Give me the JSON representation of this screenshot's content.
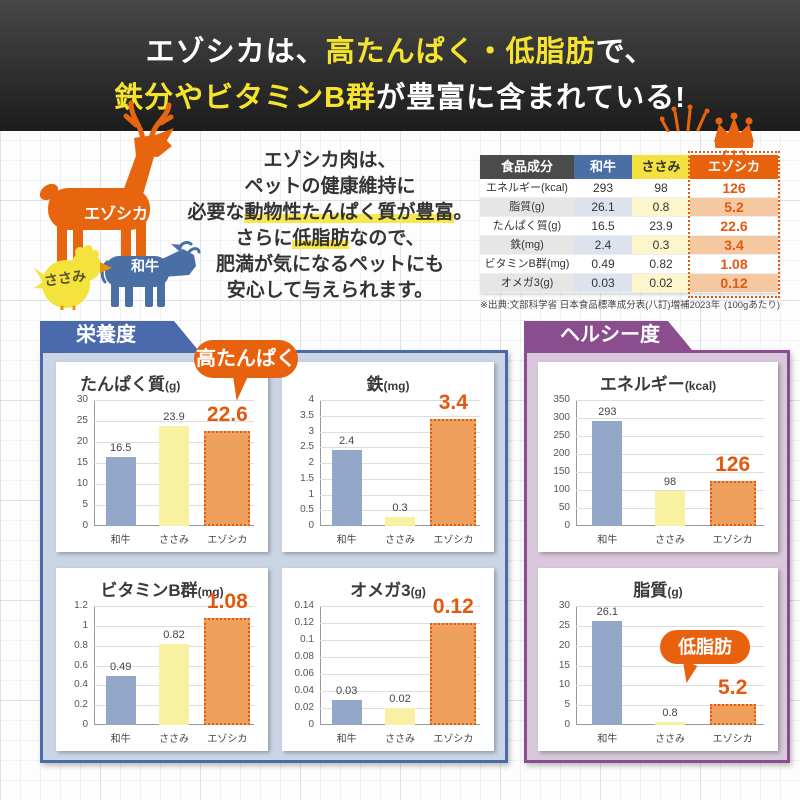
{
  "header": {
    "l1_white1": "エゾシカは、",
    "l1_yellow": "高たんぱく・低脂肪",
    "l1_white2": "で、",
    "l2_yellow": "鉄分やビタミンB群",
    "l2_white": "が豊富に含まれている!"
  },
  "animals": {
    "deer": "エゾシカ",
    "cow": "和牛",
    "chick": "ささみ"
  },
  "intro": {
    "line1": "エゾシカ肉は、",
    "line2": "ペットの健康維持に",
    "line3_pre": "必要な",
    "line3_hl": "動物性たんぱく質が豊富",
    "line3_post": "。",
    "line4_pre": "さらに",
    "line4_hl": "低脂肪",
    "line4_post": "なので、",
    "line5": "肥満が気になるペットにも",
    "line6": "安心して与えられます。"
  },
  "table": {
    "headers": [
      "食品成分",
      "和牛",
      "ささみ",
      "エゾシカ"
    ],
    "rows": [
      {
        "label": "エネルギー(kcal)",
        "wagyu": "293",
        "sasami": "98",
        "ezo": "126"
      },
      {
        "label": "脂質(g)",
        "wagyu": "26.1",
        "sasami": "0.8",
        "ezo": "5.2"
      },
      {
        "label": "たんぱく質(g)",
        "wagyu": "16.5",
        "sasami": "23.9",
        "ezo": "22.6"
      },
      {
        "label": "鉄(mg)",
        "wagyu": "2.4",
        "sasami": "0.3",
        "ezo": "3.4"
      },
      {
        "label": "ビタミンB群(mg)",
        "wagyu": "0.49",
        "sasami": "0.82",
        "ezo": "1.08"
      },
      {
        "label": "オメガ3(g)",
        "wagyu": "0.03",
        "sasami": "0.02",
        "ezo": "0.12"
      }
    ],
    "source": "※出典:文部科学省 日本食品標準成分表(八訂)増補2023年",
    "per": "(100gあたり)"
  },
  "sections": {
    "nutrition_tab": "栄養度",
    "healthy_tab": "ヘルシー度"
  },
  "bubbles": {
    "high_protein": "高たんぱく",
    "low_fat": "低脂肪"
  },
  "colors": {
    "accent_orange": "#e8610c",
    "ezo_bar_fill": "#efa05c",
    "ezo_bar_border": "#e05a10",
    "wagyu_bar": "#93a7c8",
    "sasami_bar": "#f8f1a2",
    "blue": "#4a6aab",
    "purple": "#8a4d8e",
    "table_yellow": "#f2e13e",
    "highlight_yellow": "#f9e84d",
    "header_yellow": "#f5e32e"
  },
  "chart_data": [
    {
      "id": "protein",
      "type": "bar",
      "panel": "栄養度",
      "title": "たんぱく質",
      "unit": "(g)",
      "title_align": "left",
      "categories": [
        "和牛",
        "ささみ",
        "エゾシカ"
      ],
      "values": [
        16.5,
        23.9,
        22.6
      ],
      "ylim": [
        0,
        30
      ],
      "yticks": [
        0,
        5,
        10,
        15,
        20,
        25,
        30
      ],
      "grid": true,
      "highlight_index": 2
    },
    {
      "id": "iron",
      "type": "bar",
      "panel": "栄養度",
      "title": "鉄",
      "unit": "(mg)",
      "title_align": "center",
      "categories": [
        "和牛",
        "ささみ",
        "エゾシカ"
      ],
      "values": [
        2.4,
        0.3,
        3.4
      ],
      "ylim": [
        0,
        4
      ],
      "yticks": [
        0,
        0.5,
        1,
        1.5,
        2,
        2.5,
        3,
        3.5,
        4
      ],
      "grid": true,
      "highlight_index": 2
    },
    {
      "id": "vitaminB",
      "type": "bar",
      "panel": "栄養度",
      "title": "ビタミンB群",
      "unit": "(mg)",
      "title_align": "center",
      "categories": [
        "和牛",
        "ささみ",
        "エゾシカ"
      ],
      "values": [
        0.49,
        0.82,
        1.08
      ],
      "ylim": [
        0,
        1.2
      ],
      "yticks": [
        0,
        0.2,
        0.4,
        0.6,
        0.8,
        1,
        1.2
      ],
      "grid": true,
      "highlight_index": 2
    },
    {
      "id": "omega3",
      "type": "bar",
      "panel": "栄養度",
      "title": "オメガ3",
      "unit": "(g)",
      "title_align": "center",
      "categories": [
        "和牛",
        "ささみ",
        "エゾシカ"
      ],
      "values": [
        0.03,
        0.02,
        0.12
      ],
      "ylim": [
        0,
        0.14
      ],
      "yticks": [
        0,
        0.02,
        0.04,
        0.06,
        0.08,
        0.1,
        0.12,
        0.14
      ],
      "grid": true,
      "highlight_index": 2
    },
    {
      "id": "energy",
      "type": "bar",
      "panel": "ヘルシー度",
      "title": "エネルギー",
      "unit": "(kcal)",
      "title_align": "center",
      "categories": [
        "和牛",
        "ささみ",
        "エゾシカ"
      ],
      "values": [
        293,
        98,
        126
      ],
      "ylim": [
        0,
        350
      ],
      "yticks": [
        0,
        50,
        100,
        150,
        200,
        250,
        300,
        350
      ],
      "grid": true,
      "highlight_index": 2
    },
    {
      "id": "fat",
      "type": "bar",
      "panel": "ヘルシー度",
      "title": "脂質",
      "unit": "(g)",
      "title_align": "center",
      "categories": [
        "和牛",
        "ささみ",
        "エゾシカ"
      ],
      "values": [
        26.1,
        0.8,
        5.2
      ],
      "ylim": [
        0,
        30
      ],
      "yticks": [
        0,
        5,
        10,
        15,
        20,
        25,
        30
      ],
      "grid": true,
      "highlight_index": 2
    }
  ]
}
